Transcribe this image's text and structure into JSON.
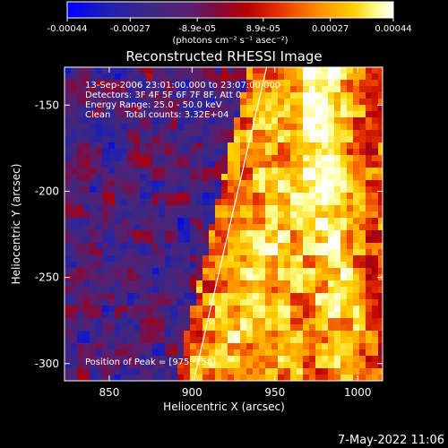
{
  "chart_data": {
    "type": "heatmap",
    "title": "Reconstructed RHESSI Image",
    "xlabel": "Heliocentric X (arcsec)",
    "ylabel": "Heliocentric Y (arcsec)",
    "xlim": [
      823,
      1015
    ],
    "ylim": [
      -310,
      -128
    ],
    "x_ticks": [
      850,
      900,
      950,
      1000
    ],
    "x_tick_labels": [
      "850",
      "900",
      "950",
      "1000"
    ],
    "y_ticks": [
      -150,
      -200,
      -250,
      -300
    ],
    "y_tick_labels": [
      "-150",
      "-200",
      "-250",
      "-300"
    ],
    "colorbar": {
      "range": [
        -0.00044,
        0.00044
      ],
      "tick_values": [
        -0.00044,
        -0.00027,
        -8.9e-05,
        8.9e-05,
        0.00027,
        0.00044
      ],
      "tick_labels": [
        "-0.00044",
        "-0.00027",
        "-8.9e-05",
        "8.9e-05",
        "0.00027",
        "0.00044"
      ],
      "units_label": "(photons cm⁻² s⁻¹ asec⁻²)"
    },
    "annotations": [
      "13-Sep-2006 23:01:00.000 to 23:07:00.000",
      "Detectors: 3F 4F 5F 6F 7F 8F, Att 0",
      "Energy Range: 25.0 - 50.0 keV",
      "Clean     Total counts: 3.32E+04"
    ],
    "peak_label": "Position of Peak = [975,-156]",
    "peak": [
      975,
      -156
    ],
    "limb_line": [
      [
        901,
        -310
      ],
      [
        945,
        -128
      ]
    ],
    "grid": false
  },
  "footer": {
    "date": "7-May-2022 11:06"
  },
  "colors": {
    "background": "#000000",
    "text": "#ffffff",
    "colormap": [
      "#0000ff",
      "#1e1eb4",
      "#3c2882",
      "#5a1e6e",
      "#820a3c",
      "#b40000",
      "#e63200",
      "#ff8c00",
      "#ffd000",
      "#ffff96",
      "#ffffff"
    ]
  }
}
